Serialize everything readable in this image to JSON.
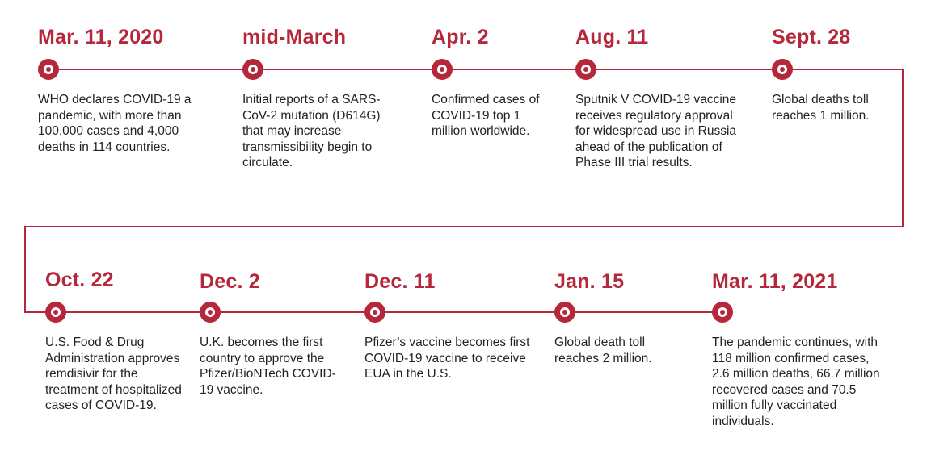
{
  "colors": {
    "accent": "#b5273a",
    "text": "#222222",
    "background": "#ffffff"
  },
  "rows": [
    {
      "events": [
        {
          "date": "Mar. 11, 2020",
          "text": "WHO declares COVID-19 a pandemic, with more than 100,000 cases and 4,000 deaths in 114 countries."
        },
        {
          "date": "mid-March",
          "text": "Initial reports of a SARS-CoV-2 mutation (D614G) that may increase transmissibility begin to circulate."
        },
        {
          "date": "Apr. 2",
          "text": "Confirmed cases of COVID-19 top 1 million worldwide."
        },
        {
          "date": "Aug. 11",
          "text": "Sputnik V COVID-19 vaccine receives regulatory approval for widespread use in Russia ahead of the publication of Phase III trial results."
        },
        {
          "date": "Sept. 28",
          "text": "Global deaths toll reaches 1 million."
        }
      ]
    },
    {
      "events": [
        {
          "date": "Oct. 22",
          "text": "U.S. Food & Drug Administration approves remdisivir for the treatment of hospitalized cases of COVID-19."
        },
        {
          "date": "Dec. 2",
          "text": "U.K. becomes the first country to approve the Pfizer/BioNTech COVID-19 vaccine."
        },
        {
          "date": "Dec. 11",
          "text": "Pfizer’s vaccine becomes first COVID-19 vaccine to receive EUA in the U.S."
        },
        {
          "date": "Jan. 15",
          "text": "Global death toll reaches 2 million."
        },
        {
          "date": "Mar. 11, 2021",
          "text": "The pandemic continues, with 118 million confirmed cases, 2.6 million deaths, 66.7 million recovered cases and 70.5 million fully vaccinated individuals."
        }
      ]
    }
  ]
}
